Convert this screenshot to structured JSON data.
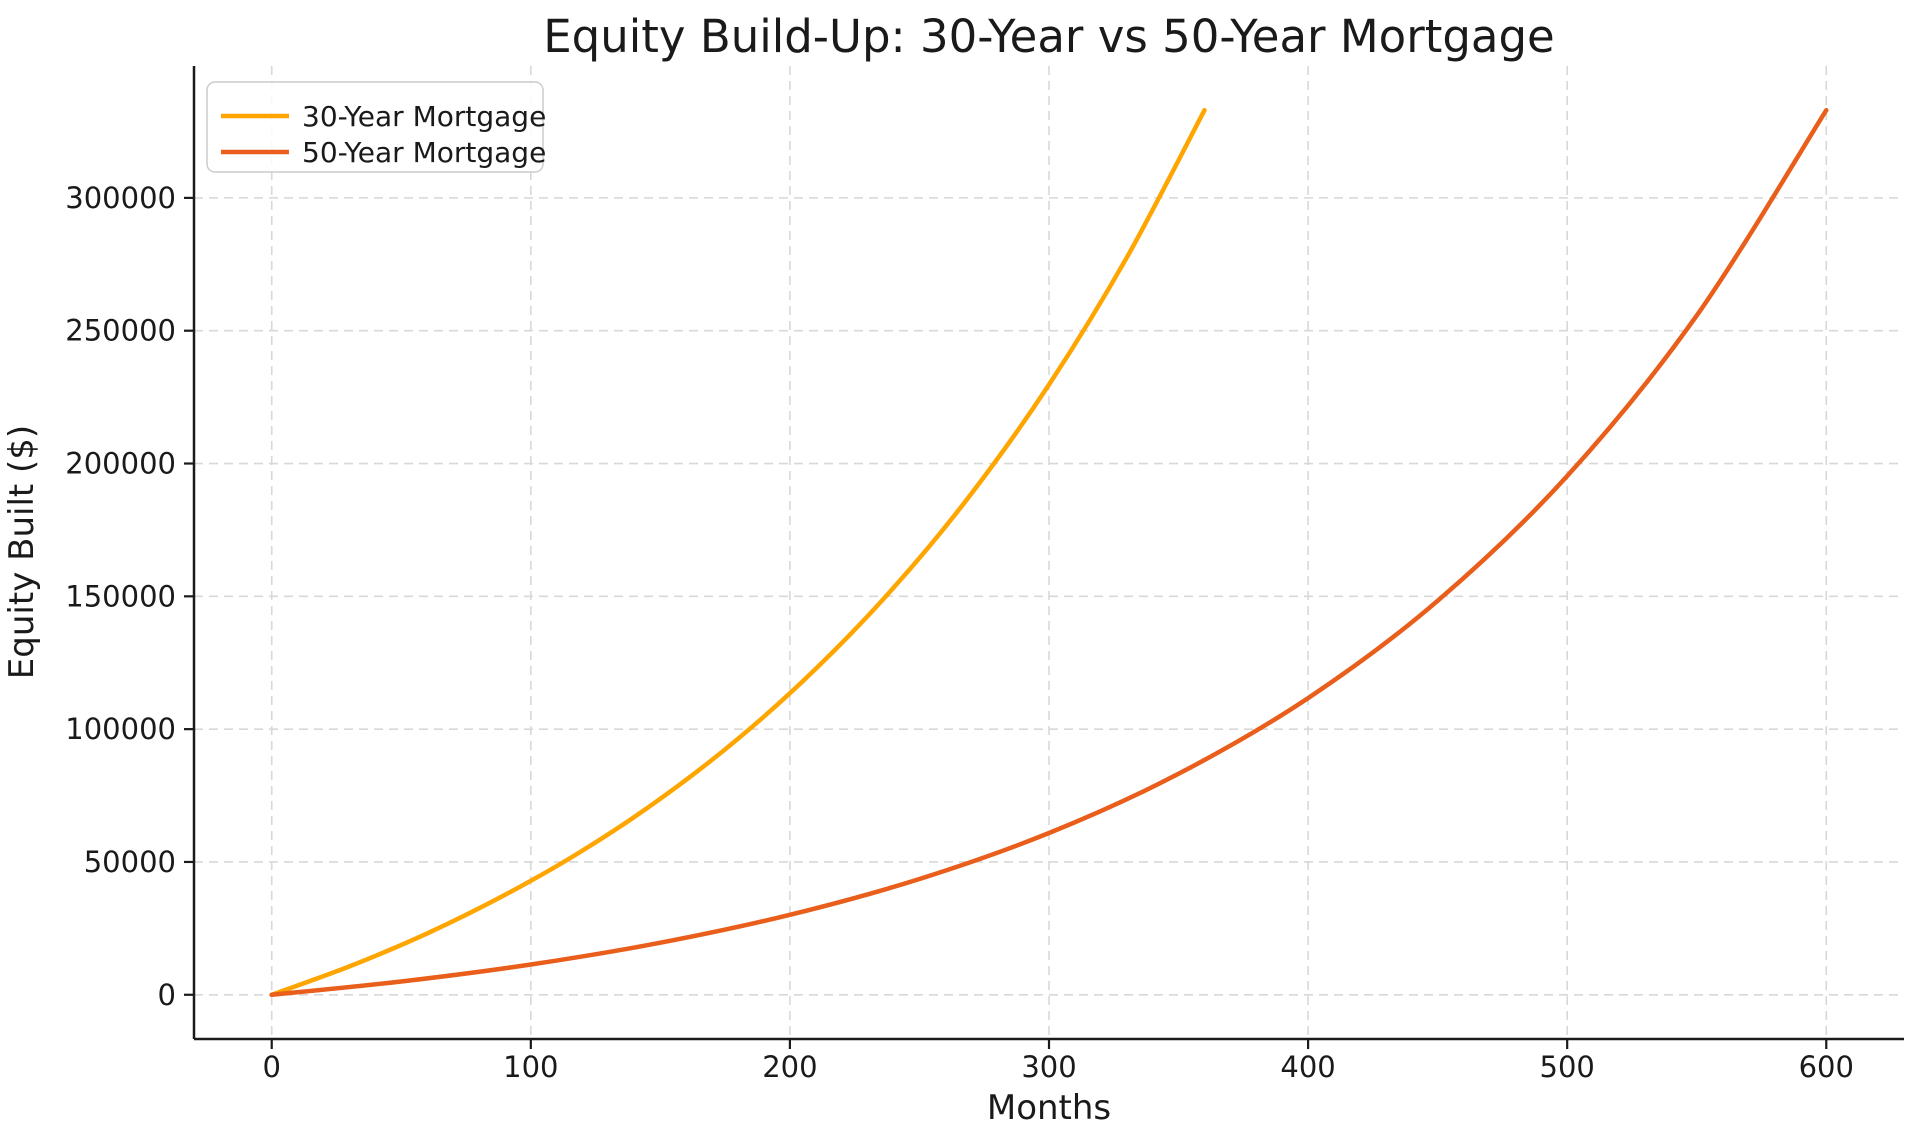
{
  "title": "Equity Build-Up: 30-Year vs 50-Year Mortgage",
  "chart_data": {
    "type": "line",
    "title": "Equity Build-Up: 30-Year vs 50-Year Mortgage",
    "xlabel": "Months",
    "ylabel": "Equity Built ($)",
    "xlim": [
      -30,
      630
    ],
    "ylim": [
      -16650,
      349650
    ],
    "x_ticks": [
      0,
      100,
      200,
      300,
      400,
      500,
      600
    ],
    "y_ticks": [
      0,
      50000,
      100000,
      150000,
      200000,
      250000,
      300000
    ],
    "grid": true,
    "grid_style": "dashed",
    "legend_position": "upper-left",
    "series": [
      {
        "name": "30-Year Mortgage",
        "color": "#FFA500",
        "x": [
          0,
          30,
          60,
          90,
          120,
          150,
          180,
          210,
          240,
          270,
          300,
          330,
          360
        ],
        "y": [
          0,
          10700,
          23100,
          37600,
          54300,
          73800,
          96400,
          122700,
          153200,
          188600,
          229700,
          277500,
          333000
        ]
      },
      {
        "name": "50-Year Mortgage",
        "color": "#E95E1B",
        "x": [
          0,
          50,
          100,
          150,
          200,
          250,
          300,
          350,
          400,
          450,
          500,
          550,
          600
        ],
        "y": [
          0,
          5000,
          11400,
          19600,
          30100,
          43600,
          60900,
          83200,
          111700,
          148300,
          195300,
          255700,
          333000
        ]
      }
    ]
  },
  "style": {
    "grid_color": "#d8d8d8",
    "spine_color": "#1a1a1a",
    "legend_border_color": "#cccccc"
  }
}
